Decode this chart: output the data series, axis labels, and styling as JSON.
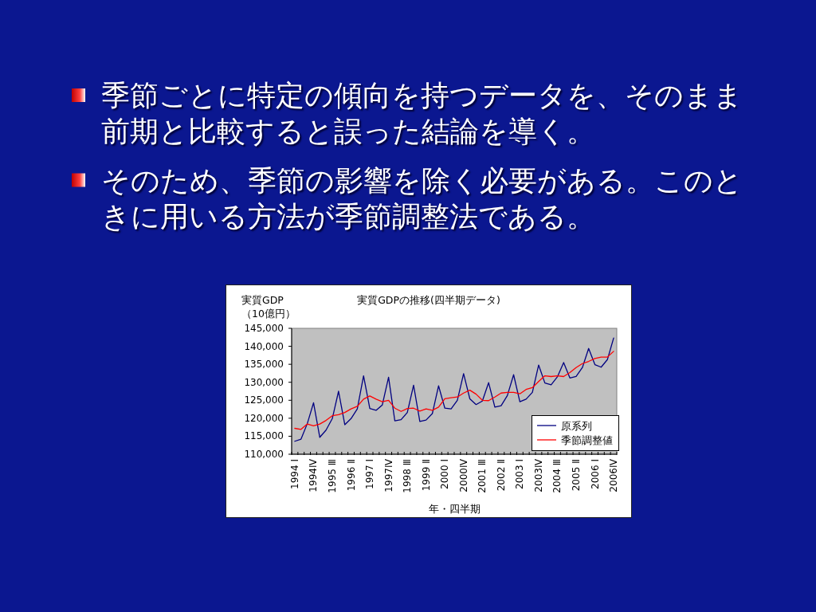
{
  "chart_data": {
    "type": "line",
    "title": "実質GDPの推移(四半期データ)",
    "xlabel": "年・四半期",
    "ylabel": "実質GDP\n（10億円）",
    "categories": [
      "1994 Ⅰ",
      null,
      null,
      "1994Ⅳ",
      null,
      null,
      "1995 Ⅲ",
      null,
      null,
      "1996 Ⅱ",
      null,
      null,
      "1997 Ⅰ",
      null,
      null,
      "1997Ⅳ",
      null,
      null,
      "1998 Ⅲ",
      null,
      null,
      "1999 Ⅱ",
      null,
      null,
      "2000 Ⅰ",
      null,
      null,
      "2000Ⅳ",
      null,
      null,
      "2001 Ⅲ",
      null,
      null,
      "2002 Ⅱ",
      null,
      null,
      "2003 Ⅰ",
      null,
      null,
      "2003Ⅳ",
      null,
      null,
      "2004 Ⅲ",
      null,
      null,
      "2005 Ⅱ",
      null,
      null,
      "2006 Ⅰ",
      null,
      null,
      "2006Ⅳ"
    ],
    "series": [
      {
        "name": "原系列",
        "color": "#000080",
        "values": [
          113600,
          114200,
          118500,
          124300,
          114700,
          116700,
          119900,
          127500,
          118200,
          119900,
          122600,
          131800,
          122700,
          122200,
          123700,
          131400,
          119300,
          119600,
          121600,
          129200,
          119100,
          119500,
          121300,
          129000,
          122800,
          122600,
          125000,
          132400,
          125400,
          123800,
          124800,
          129900,
          123100,
          123500,
          126300,
          132100,
          124600,
          125300,
          127200,
          134800,
          129800,
          129300,
          131500,
          135500,
          131200,
          131600,
          134100,
          139400,
          134900,
          134200,
          136300,
          142300
        ]
      },
      {
        "name": "季節調整値",
        "color": "#ff0000",
        "values": [
          117200,
          116900,
          118400,
          117900,
          118400,
          119400,
          120700,
          121000,
          121600,
          122600,
          123300,
          125300,
          126200,
          125300,
          124600,
          125000,
          122800,
          121900,
          122700,
          122800,
          122000,
          122600,
          122200,
          123100,
          125400,
          125700,
          125900,
          127000,
          127800,
          126700,
          125000,
          124900,
          125900,
          127000,
          127200,
          127200,
          126800,
          128000,
          128500,
          130200,
          131800,
          131600,
          131800,
          131600,
          132700,
          134100,
          135200,
          135800,
          136600,
          137000,
          137000,
          138600
        ]
      }
    ],
    "ylim": [
      110000,
      145000
    ],
    "yticks": [
      {
        "value": 110000,
        "label": "110,000"
      },
      {
        "value": 115000,
        "label": "115,000"
      },
      {
        "value": 120000,
        "label": "120,000"
      },
      {
        "value": 125000,
        "label": "125,000"
      },
      {
        "value": 130000,
        "label": "130,000"
      },
      {
        "value": 135000,
        "label": "135,000"
      },
      {
        "value": 140000,
        "label": "140,000"
      },
      {
        "value": 145000,
        "label": "145,000"
      }
    ],
    "legend": "bottom right",
    "annotations": [
      "季節ごとに特定の傾向を持つデータを、そのまま前期と比較すると誤った結論を導く。",
      "そのため、季節の影響を除く必要がある。このときに用いる方法が季節調整法である。"
    ]
  }
}
